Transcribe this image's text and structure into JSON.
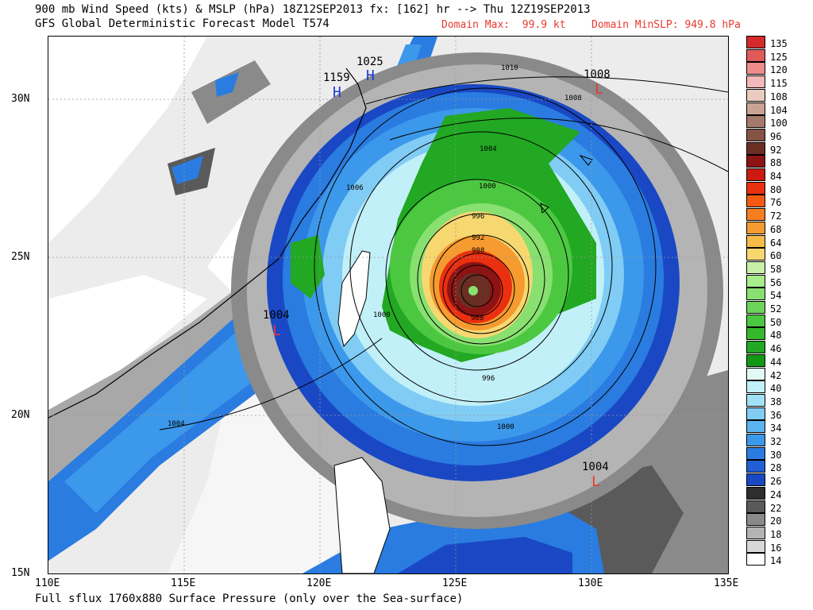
{
  "header": {
    "title_line1": "900 mb Wind Speed (kts) & MSLP (hPa) 18Z12SEP2013 fx: [162] hr --> Thu 12Z19SEP2013",
    "title_line2": "GFS Global Deterministic Forecast Model T574",
    "domain_max": "Domain Max:  99.9 kt",
    "domain_min": "Domain MinSLP: 949.8 hPa"
  },
  "footer": "Full sflux 1760x880 Surface Pressure (only over the Sea-surface)",
  "axes": {
    "lat_labels": [
      "30N",
      "25N",
      "20N",
      "15N"
    ],
    "lon_labels": [
      "110E",
      "115E",
      "120E",
      "125E",
      "130E",
      "135E"
    ]
  },
  "legend": {
    "levels": [
      "135",
      "125",
      "120",
      "115",
      "108",
      "104",
      "100",
      "96",
      "92",
      "88",
      "84",
      "80",
      "76",
      "72",
      "68",
      "64",
      "60",
      "58",
      "56",
      "54",
      "52",
      "50",
      "48",
      "46",
      "44",
      "42",
      "40",
      "38",
      "36",
      "34",
      "32",
      "30",
      "28",
      "26",
      "24",
      "22",
      "20",
      "18",
      "16",
      "14"
    ],
    "colors": [
      "#d42a2a",
      "#e05a5a",
      "#ee8c8c",
      "#f5b8b8",
      "#e9cbbf",
      "#c9a495",
      "#a67a6a",
      "#845345",
      "#6a2e22",
      "#8c1414",
      "#cc1a10",
      "#ea3010",
      "#f55a10",
      "#f77e20",
      "#f59b30",
      "#f7bb48",
      "#f7d870",
      "#c8f0a8",
      "#a8ec8c",
      "#88e070",
      "#6cd45a",
      "#4cc840",
      "#34b82c",
      "#22a822",
      "#129814",
      "#e2faf6",
      "#c2f0f8",
      "#a2e0f8",
      "#80ccf5",
      "#5ab4f0",
      "#3c98ea",
      "#2a7ce0",
      "#2060d4",
      "#1a48c4",
      "#2e2e2e",
      "#5a5a5a",
      "#8a8a8a",
      "#b4b4b4",
      "#d8d8d8",
      "#ffffff"
    ]
  },
  "pressure_labels": [
    {
      "text": "1010"
    },
    {
      "text": "1008"
    },
    {
      "text": "1004"
    },
    {
      "text": "1006"
    },
    {
      "text": "1000"
    },
    {
      "text": "996"
    },
    {
      "text": "992"
    },
    {
      "text": "988"
    },
    {
      "text": "980"
    },
    {
      "text": "1000"
    },
    {
      "text": "996"
    },
    {
      "text": "1000"
    },
    {
      "text": "1004"
    },
    {
      "text": "1004"
    }
  ],
  "pressure_centers": [
    {
      "type": "H",
      "value": "1025",
      "color": "#1a3cd8"
    },
    {
      "type": "H",
      "value": "1159",
      "color": "#1a3cd8"
    },
    {
      "type": "L",
      "value": "1008",
      "color": "#e8392f"
    },
    {
      "type": "L",
      "value": "1004",
      "color": "#e8392f"
    },
    {
      "type": "L",
      "value": "1004",
      "color": "#e8392f"
    }
  ]
}
